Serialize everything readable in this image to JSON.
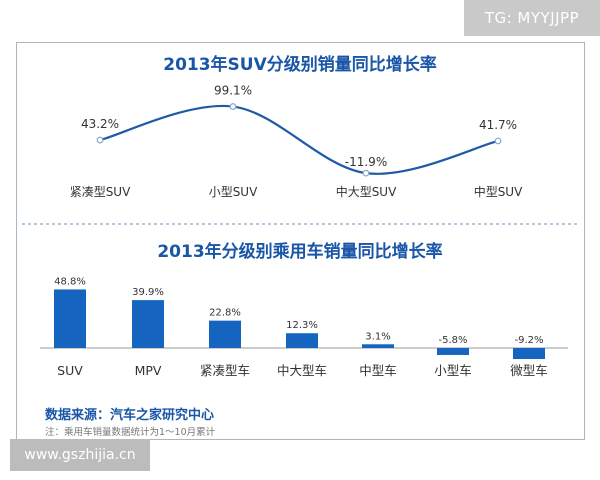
{
  "watermark_top": "TG: MYYJJPP",
  "watermark_bottom": "www.gszhijia.cn",
  "source": "数据来源：汽车之家研究中心",
  "note": "注：乘用车销量数据统计为1～10月累计",
  "colors": {
    "accent": "#1a56a8",
    "bar": "#1565c0",
    "line": "#1f5aa6",
    "dashed": "#7fa7d3"
  },
  "chart_data": [
    {
      "type": "line",
      "title": "2013年SUV分级别销量同比增长率",
      "categories": [
        "紧凑型SUV",
        "小型SUV",
        "中大型SUV",
        "中型SUV"
      ],
      "values": [
        43.2,
        99.1,
        -11.9,
        41.7
      ],
      "value_labels": [
        "43.2%",
        "99.1%",
        "-11.9%",
        "41.7%"
      ],
      "xlabel": "",
      "ylabel": "",
      "ylim": [
        -20,
        110
      ],
      "grid": false
    },
    {
      "type": "bar",
      "title": "2013年分级别乘用车销量同比增长率",
      "categories": [
        "SUV",
        "MPV",
        "紧凑型车",
        "中大型车",
        "中型车",
        "小型车",
        "微型车"
      ],
      "values": [
        48.8,
        39.9,
        22.8,
        12.3,
        3.1,
        -5.8,
        -9.2
      ],
      "value_labels": [
        "48.8%",
        "39.9%",
        "22.8%",
        "12.3%",
        "3.1%",
        "-5.8%",
        "-9.2%"
      ],
      "xlabel": "",
      "ylabel": "",
      "ylim": [
        -12,
        52
      ],
      "grid": false
    }
  ]
}
